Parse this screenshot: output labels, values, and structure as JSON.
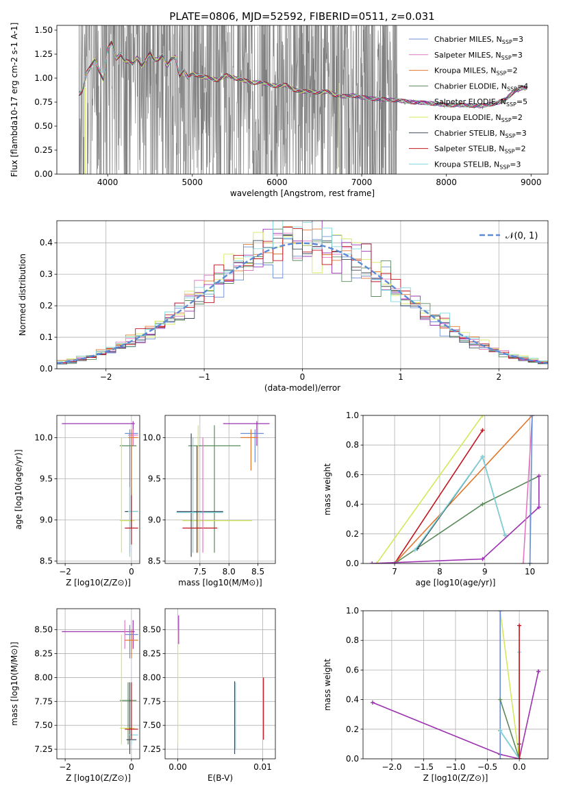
{
  "figure": {
    "title": "PLATE=0806, MJD=52592, FIBERID=0511, z=0.031"
  },
  "colors": {
    "Chabrier MILES": "#6b8fd6",
    "Salpeter MILES": "#e377c2",
    "Kroupa MILES": "#e0762b",
    "Chabrier ELODIE": "#5a8a5a",
    "Salpeter ELODIE": "#9b30b0",
    "Kroupa ELODIE": "#d4e85a",
    "Chabrier STELIB": "#3a4a5a",
    "Salpeter STELIB": "#c0141e",
    "Kroupa STELIB": "#7fd6dc",
    "data": "#808080",
    "normal": "#5b8bd6"
  },
  "chart_data": [
    {
      "id": "spectrum",
      "type": "line",
      "title": "PLATE=0806, MJD=52592, FIBERID=0511, z=0.031",
      "xlabel": "wavelength [Angstrom, rest frame]",
      "ylabel": "Flux [f$_\\lambda$10$^{-17}$ erg cm$^{-2}$ s$^{-1}$ A$^{-1}$]",
      "xlim": [
        3400,
        9200
      ],
      "ylim": [
        0,
        1.55
      ],
      "xticks": [
        "4000",
        "5000",
        "6000",
        "7000",
        "8000",
        "9000"
      ],
      "yticks": [
        "0.00",
        "0.25",
        "0.50",
        "0.75",
        "1.00",
        "1.25",
        "1.50"
      ],
      "grid": false,
      "legend_position": "top-right",
      "legend": [
        {
          "name": "Chabrier MILES",
          "nssp": "3"
        },
        {
          "name": "Salpeter MILES",
          "nssp": "3"
        },
        {
          "name": "Kroupa MILES",
          "nssp": "2"
        },
        {
          "name": "Chabrier ELODIE",
          "nssp": "4"
        },
        {
          "name": "Salpeter ELODIE",
          "nssp": "5"
        },
        {
          "name": "Kroupa ELODIE",
          "nssp": "2"
        },
        {
          "name": "Chabrier STELIB",
          "nssp": "3"
        },
        {
          "name": "Salpeter STELIB",
          "nssp": "2"
        },
        {
          "name": "Kroupa STELIB",
          "nssp": "3"
        }
      ],
      "model_x": [
        3650,
        3700,
        3750,
        3800,
        3850,
        3900,
        3950,
        4000,
        4050,
        4100,
        4150,
        4200,
        4250,
        4300,
        4350,
        4400,
        4450,
        4500,
        4550,
        4600,
        4650,
        4700,
        4750,
        4800,
        4850,
        4900,
        4950,
        5000,
        5100,
        5200,
        5300,
        5400,
        5500,
        5600,
        5700,
        5800,
        5900,
        6000,
        6100,
        6200,
        6300,
        6400,
        6500,
        6600,
        6700,
        6800,
        6900,
        7000,
        7200,
        7400,
        7600,
        7800,
        8000,
        8200,
        8400,
        8600,
        8700,
        8800,
        8900
      ],
      "model_y": [
        0.83,
        0.86,
        1.05,
        1.12,
        1.2,
        1.08,
        0.98,
        1.3,
        1.38,
        1.2,
        1.25,
        1.18,
        1.17,
        1.15,
        1.22,
        1.13,
        1.18,
        1.26,
        1.19,
        1.2,
        1.24,
        1.12,
        1.2,
        1.22,
        1.02,
        1.08,
        1.0,
        1.05,
        1.02,
        1.0,
        0.98,
        1.03,
        1.0,
        0.98,
        0.95,
        0.96,
        0.93,
        0.92,
        0.93,
        0.88,
        0.86,
        0.86,
        0.85,
        0.86,
        0.82,
        0.81,
        0.82,
        0.8,
        0.78,
        0.77,
        0.75,
        0.74,
        0.72,
        0.72,
        0.71,
        0.74,
        0.78,
        0.86,
        0.9
      ]
    },
    {
      "id": "residuals",
      "type": "line",
      "xlabel": "(data-model)/error",
      "ylabel": "Normed distribution",
      "xlim": [
        -2.5,
        2.5
      ],
      "ylim": [
        0,
        0.47
      ],
      "xticks": [
        "−2",
        "−1",
        "0",
        "1",
        "2"
      ],
      "yticks": [
        "0.0",
        "0.1",
        "0.2",
        "0.3",
        "0.4"
      ],
      "grid": true,
      "legend_position": "top-right",
      "legend": [
        {
          "name": "$\\mathcal{N}(0, 1)$"
        }
      ]
    },
    {
      "id": "age-vs-z",
      "type": "scatter",
      "xlabel": "Z [log$_{10}$(Z/Z$_\\odot$)]",
      "ylabel": "age  [log$_{10}$(age/yr)]",
      "xlim": [
        -2.25,
        0.25
      ],
      "ylim": [
        8.47,
        10.27
      ],
      "xticks": [
        "−2",
        "0"
      ],
      "yticks": [
        "8.5",
        "9.0",
        "9.5",
        "10.0"
      ],
      "grid": true
    },
    {
      "id": "age-vs-mass",
      "type": "scatter",
      "xlabel": "mass [log$_{10}$(M/M$_\\odot$)]",
      "xlim": [
        6.9,
        8.8
      ],
      "ylim": [
        8.47,
        10.27
      ],
      "xticks": [
        "7.5",
        "8.0",
        "8.5"
      ],
      "yticks": [
        "8.5",
        "9.0",
        "9.5",
        "10.0"
      ],
      "grid": true
    },
    {
      "id": "weight-vs-age",
      "type": "line",
      "xlabel": "age  [log$_{10}$(age/yr)]",
      "ylabel": "mass weight",
      "xlim": [
        6.3,
        10.4
      ],
      "ylim": [
        0,
        1.0
      ],
      "xticks": [
        "7",
        "8",
        "9",
        "10"
      ],
      "yticks": [
        "0.0",
        "0.2",
        "0.4",
        "0.6",
        "0.8",
        "1.0"
      ],
      "grid": true,
      "series": [
        {
          "model": "Kroupa ELODIE",
          "x": [
            6.6,
            8.95
          ],
          "y": [
            0.0,
            1.0
          ]
        },
        {
          "model": "Salpeter STELIB",
          "x": [
            7.0,
            8.95
          ],
          "y": [
            0.0,
            0.9
          ]
        },
        {
          "model": "Kroupa MILES",
          "x": [
            7.0,
            10.05
          ],
          "y": [
            0.0,
            1.0
          ]
        },
        {
          "model": "Chabrier ELODIE",
          "x": [
            7.0,
            8.95,
            10.2
          ],
          "y": [
            0.0,
            0.4,
            0.59
          ]
        },
        {
          "model": "Salpeter ELODIE",
          "x": [
            6.5,
            8.95,
            10.2,
            10.2
          ],
          "y": [
            0.0,
            0.03,
            0.38,
            0.59
          ]
        },
        {
          "model": "Salpeter MILES",
          "x": [
            9.85,
            10.05
          ],
          "y": [
            0.0,
            1.0
          ]
        },
        {
          "model": "Chabrier MILES",
          "x": [
            10.0,
            10.05,
            10.0
          ],
          "y": [
            0.0,
            1.0,
            0.0
          ]
        },
        {
          "model": "Chabrier STELIB",
          "x": [
            7.5,
            8.95,
            9.45
          ],
          "y": [
            0.1,
            0.72,
            0.19
          ]
        },
        {
          "model": "Kroupa STELIB",
          "x": [
            7.45,
            8.95,
            9.45
          ],
          "y": [
            0.09,
            0.72,
            0.19
          ]
        }
      ]
    },
    {
      "id": "mass-vs-z",
      "type": "scatter",
      "xlabel": "Z [log$_{10}$(Z/Z$_\\odot$)]",
      "ylabel": "mass [log$_{10}$(M/M$_\\odot$)]",
      "xlim": [
        -2.25,
        0.25
      ],
      "ylim": [
        7.15,
        8.72
      ],
      "xticks": [
        "−2",
        "0"
      ],
      "yticks": [
        "7.25",
        "7.50",
        "7.75",
        "8.00",
        "8.25",
        "8.50"
      ],
      "grid": true
    },
    {
      "id": "mass-vs-ebv",
      "type": "scatter",
      "xlabel": "E(B-V)",
      "xlim": [
        -0.0015,
        0.0115
      ],
      "ylim": [
        7.15,
        8.72
      ],
      "xticks": [
        "0.00",
        "0.01"
      ],
      "yticks": [
        "7.25",
        "7.50",
        "7.75",
        "8.00",
        "8.25",
        "8.50"
      ],
      "grid": true
    },
    {
      "id": "weight-vs-z",
      "type": "line",
      "xlabel": "Z [log$_{10}$(Z/Z$_\\odot$)]",
      "ylabel": "mass weight",
      "xlim": [
        -2.45,
        0.45
      ],
      "ylim": [
        0,
        1.0
      ],
      "xticks": [
        "−2.0",
        "−1.5",
        "−1.0",
        "−0.5",
        "0.0"
      ],
      "yticks": [
        "0.0",
        "0.2",
        "0.4",
        "0.6",
        "0.8",
        "1.0"
      ],
      "grid": true,
      "series": [
        {
          "model": "Salpeter ELODIE",
          "x": [
            -2.3,
            -0.3,
            0.0,
            0.3,
            0.3
          ],
          "y": [
            0.38,
            0.03,
            0.0,
            0.59,
            0.59
          ]
        },
        {
          "model": "Kroupa ELODIE",
          "x": [
            -0.3,
            0.0
          ],
          "y": [
            1.0,
            0.0
          ]
        },
        {
          "model": "Chabrier MILES",
          "x": [
            -0.3,
            -0.3
          ],
          "y": [
            0.0,
            1.0
          ]
        },
        {
          "model": "Chabrier ELODIE",
          "x": [
            -0.3,
            0.0
          ],
          "y": [
            0.4,
            0.0
          ]
        },
        {
          "model": "Chabrier STELIB",
          "x": [
            -0.3,
            0.0,
            0.0
          ],
          "y": [
            0.19,
            0.0,
            0.1
          ]
        },
        {
          "model": "Kroupa STELIB",
          "x": [
            -0.3,
            0.0,
            0.0
          ],
          "y": [
            0.19,
            0.0,
            0.72
          ]
        },
        {
          "model": "Salpeter STELIB",
          "x": [
            0.0,
            0.0
          ],
          "y": [
            0.0,
            0.9
          ]
        }
      ]
    }
  ]
}
